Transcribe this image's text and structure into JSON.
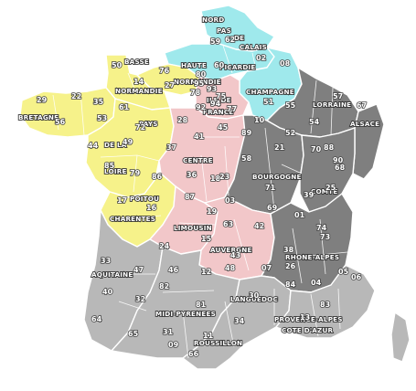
{
  "colors": {
    "blue": "#9fe9ec",
    "yellow": "#f6f28a",
    "pink": "#f2c7c9",
    "grey": "#b8b8b8",
    "darkgrey": "#7f7f7f"
  },
  "regions": {
    "nord_pas_de_calais": [
      "NORD",
      "PAS",
      "DE",
      "CALAIS"
    ],
    "haute_normandie": [
      "HAUTE",
      "NORMANDIE"
    ],
    "picardie": "PICARDIE",
    "basse": "BASSE",
    "normandie": "NORMANDIE",
    "champagne": "CHAMPAGNE",
    "ile_de_france": [
      "ILE DE",
      "FRANCE"
    ],
    "lorraine": "LORRAINE",
    "alsace": "ALSACE",
    "bretagne": "BRETAGNE",
    "pays_de_la_loire": [
      "PAYS",
      "DE LA",
      "LOIRE"
    ],
    "centre": "CENTRE",
    "bourgogne": "BOURGOGNE",
    "franche_comte": "COMTE",
    "poitou_charentes": [
      "POITOU",
      "CHARENTES"
    ],
    "limousin": "LIMOUSIN",
    "auvergne": "AUVERGNE",
    "rhone_alpes": "RHONE-ALPES",
    "aquitaine": "AQUITAINE",
    "midi_pyrenees": "MIDI-PYRENEES",
    "languedoc": "LANGUEDOC",
    "roussillon": "ROUSSILLON",
    "provence": [
      "PROVENCE-ALPES",
      "COTE D'AZUR"
    ]
  },
  "departments": [
    "59",
    "62",
    "80",
    "76",
    "02",
    "60",
    "08",
    "50",
    "14",
    "27",
    "95",
    "78",
    "75",
    "93",
    "94",
    "92",
    "77",
    "51",
    "55",
    "57",
    "54",
    "67",
    "29",
    "22",
    "35",
    "56",
    "53",
    "61",
    "72",
    "28",
    "44",
    "49",
    "37",
    "41",
    "45",
    "89",
    "10",
    "52",
    "88",
    "68",
    "90",
    "25",
    "70",
    "21",
    "58",
    "18",
    "36",
    "85",
    "79",
    "86",
    "17",
    "16",
    "87",
    "23",
    "19",
    "03",
    "63",
    "42",
    "71",
    "39",
    "01",
    "69",
    "74",
    "73",
    "38",
    "26",
    "07",
    "43",
    "15",
    "33",
    "24",
    "47",
    "40",
    "46",
    "82",
    "12",
    "48",
    "30",
    "84",
    "04",
    "05",
    "06",
    "83",
    "13",
    "32",
    "31",
    "81",
    "64",
    "65",
    "09",
    "11",
    "34",
    "66"
  ]
}
